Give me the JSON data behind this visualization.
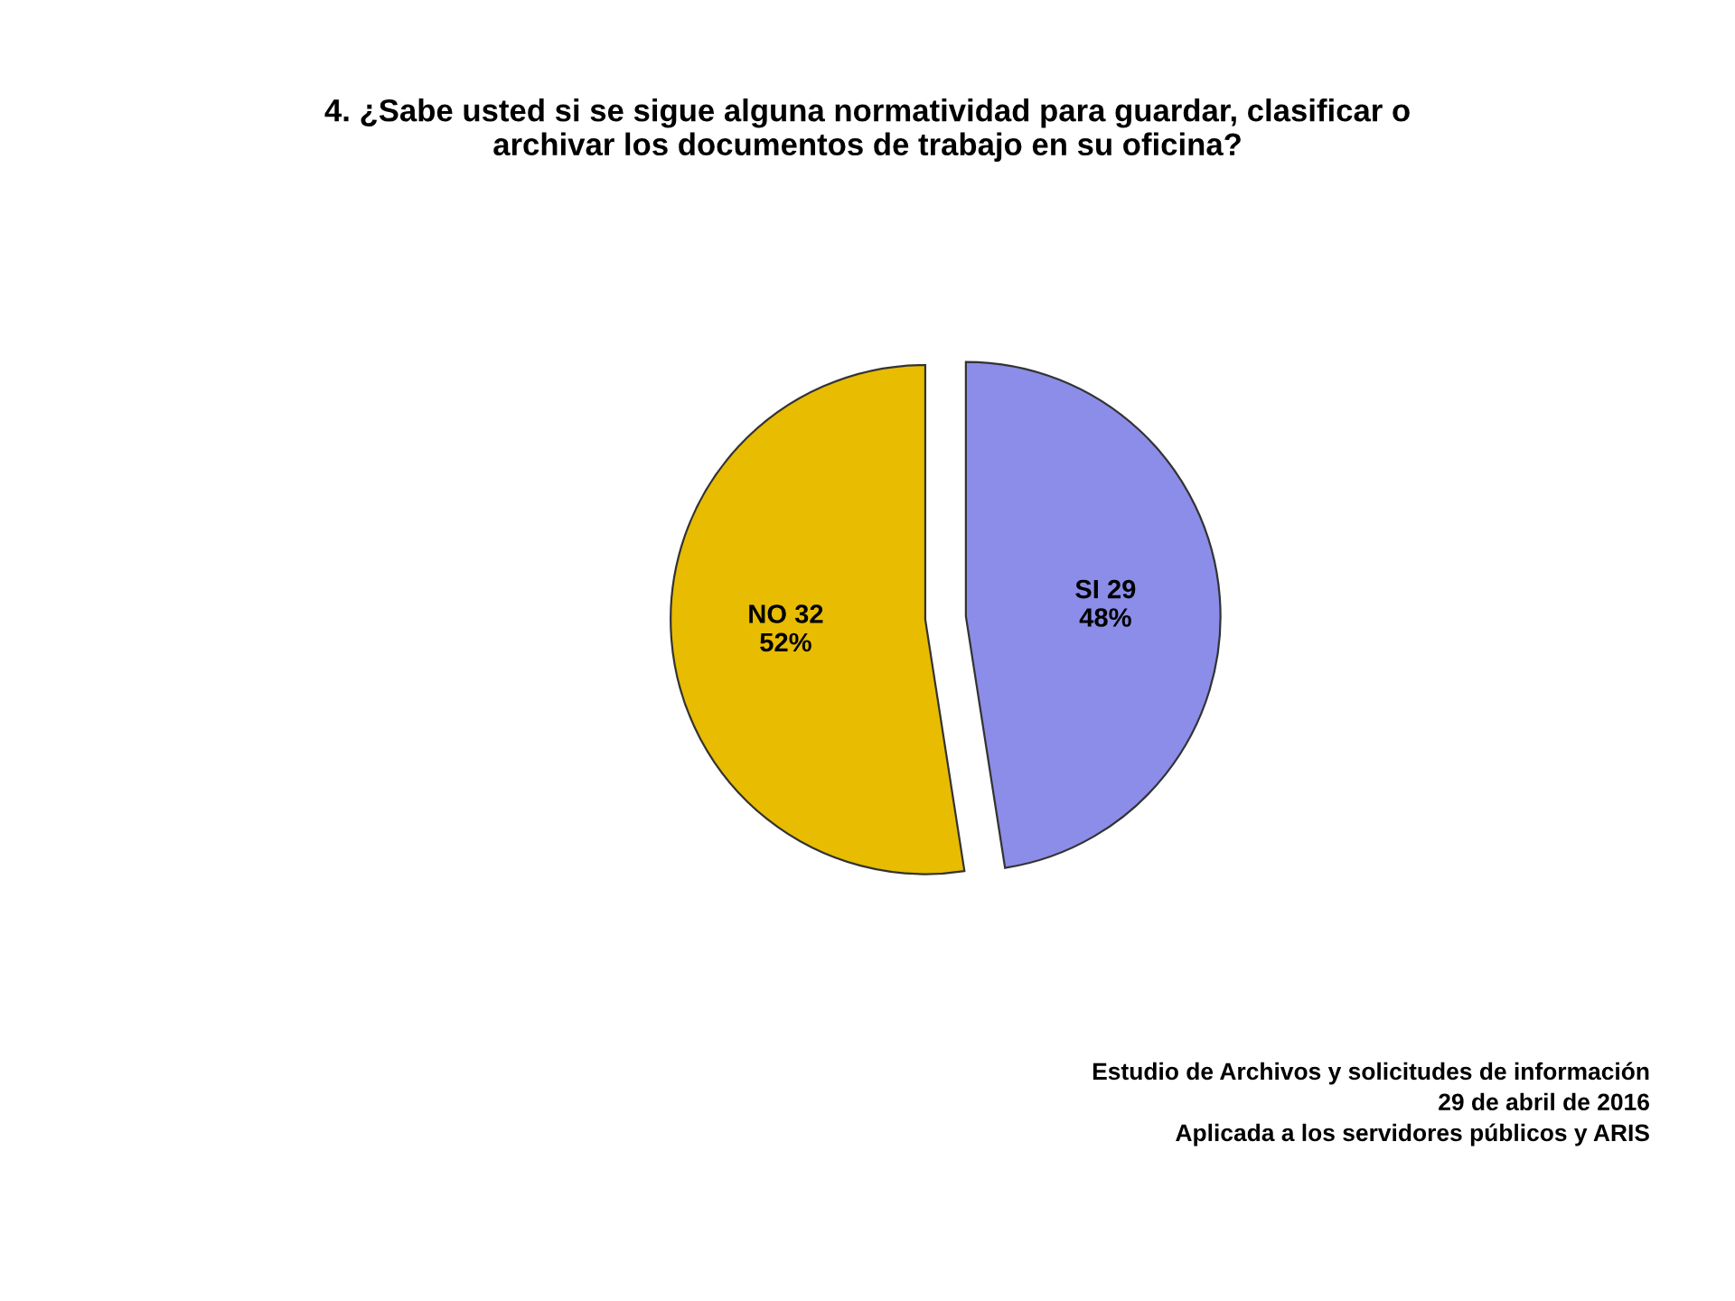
{
  "chart_data": {
    "type": "pie",
    "title": "4. ¿Sabe usted si se sigue alguna normatividad para guardar, clasificar o archivar los documentos de trabajo en su oficina?",
    "categories": [
      "SI",
      "NO"
    ],
    "values": [
      29,
      32
    ],
    "colors": [
      "#8b8de8",
      "#e8bc00"
    ],
    "value_labels": [
      "29\n48%",
      "32\n52%"
    ],
    "annotations": [
      "Estudio de Archivos y solicitudes de información",
      "29 de abril de 2016",
      "Aplicada a los servidores públicos y ARIS"
    ]
  }
}
